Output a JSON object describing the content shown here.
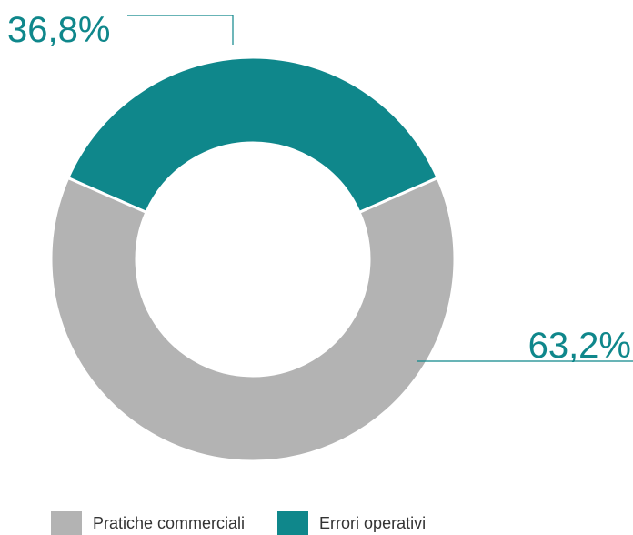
{
  "chart_data": {
    "type": "pie",
    "categories": [
      "Pratiche commerciali",
      "Errori operativi"
    ],
    "values": [
      63.2,
      36.8
    ],
    "value_labels": [
      "63,2%",
      "36,8%"
    ],
    "colors": [
      "#b3b3b3",
      "#0f878b"
    ],
    "label_color": "#0f878b",
    "legend": "bottom-left"
  },
  "legend": {
    "items": [
      {
        "label": "Pratiche commerciali",
        "color": "#b3b3b3"
      },
      {
        "label": "Errori operativi",
        "color": "#0f878b"
      }
    ]
  }
}
